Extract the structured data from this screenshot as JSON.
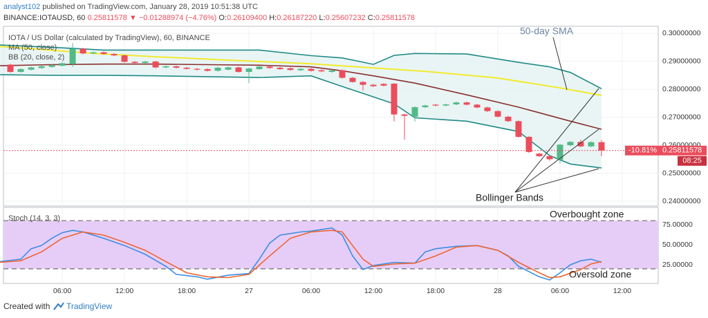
{
  "header": {
    "author": "analyst102",
    "published": "published on TradingView.com, January 28, 2019 10:51:38 UTC",
    "symbol": "BINANCE:IOTAUSD, 60",
    "price": "0.25811578",
    "change": "▼ −0.01288974 (−4.76%)",
    "ohlc": [
      {
        "label": "O:",
        "value": "0.26109400"
      },
      {
        "label": "H:",
        "value": "0.26187220"
      },
      {
        "label": "L:",
        "value": "0.25607232"
      },
      {
        "label": "C:",
        "value": "0.25811578"
      }
    ]
  },
  "footer": {
    "text": "Created with",
    "brand": "TradingView"
  },
  "chart_data": [
    {
      "type": "candlestick",
      "title": "IOTA / US Dollar (calculated by TradingView), 60, BINANCE",
      "up_color": "#53b987",
      "down_color": "#eb4d5c",
      "x": [
        1,
        2,
        3,
        4,
        5,
        6,
        7,
        8,
        9,
        10,
        11,
        12,
        13,
        14,
        15,
        16,
        17,
        18,
        19,
        20,
        21,
        22,
        23,
        24,
        25,
        26,
        27,
        28,
        29,
        30,
        31,
        32,
        33,
        34,
        35,
        36,
        37,
        38,
        39,
        40,
        41,
        42,
        43,
        44,
        45,
        46,
        47,
        48,
        49,
        50,
        51,
        52,
        53,
        54,
        55,
        56,
        57,
        58
      ],
      "open": [
        0.2888,
        0.2862,
        0.287,
        0.2876,
        0.288,
        0.2884,
        0.289,
        0.2945,
        0.2928,
        0.2932,
        0.2926,
        0.2921,
        0.2898,
        0.2894,
        0.2899,
        0.2878,
        0.2882,
        0.2877,
        0.2873,
        0.2872,
        0.2866,
        0.287,
        0.2878,
        0.2862,
        0.2872,
        0.2881,
        0.2877,
        0.2875,
        0.2868,
        0.2873,
        0.2868,
        0.2862,
        0.2868,
        0.2841,
        0.2826,
        0.2816,
        0.2819,
        0.282,
        0.271,
        0.2702,
        0.2736,
        0.2745,
        0.2742,
        0.2746,
        0.2753,
        0.2745,
        0.2735,
        0.2722,
        0.2702,
        0.2686,
        0.263,
        0.257,
        0.2561,
        0.2548,
        0.26,
        0.2612,
        0.2596,
        0.261094
      ],
      "high": [
        0.2891,
        0.2875,
        0.2881,
        0.2885,
        0.2889,
        0.2896,
        0.2965,
        0.2948,
        0.2935,
        0.2935,
        0.2929,
        0.2924,
        0.2901,
        0.2902,
        0.2902,
        0.2885,
        0.2885,
        0.288,
        0.2876,
        0.2875,
        0.288,
        0.2881,
        0.2881,
        0.2877,
        0.2884,
        0.2884,
        0.288,
        0.2878,
        0.2876,
        0.2876,
        0.2871,
        0.287,
        0.2871,
        0.2844,
        0.2829,
        0.2819,
        0.2822,
        0.2822,
        0.2713,
        0.2739,
        0.2745,
        0.2748,
        0.2749,
        0.2756,
        0.2756,
        0.2748,
        0.2738,
        0.2725,
        0.2705,
        0.2689,
        0.2633,
        0.2573,
        0.2564,
        0.2605,
        0.2615,
        0.262,
        0.2614,
        0.2618722
      ],
      "low": [
        0.2859,
        0.2859,
        0.2867,
        0.2873,
        0.2877,
        0.2881,
        0.288,
        0.2925,
        0.2925,
        0.2923,
        0.2918,
        0.2895,
        0.2891,
        0.2891,
        0.2875,
        0.2875,
        0.2874,
        0.287,
        0.2867,
        0.2863,
        0.2863,
        0.2867,
        0.2859,
        0.2822,
        0.2869,
        0.2873,
        0.2869,
        0.2866,
        0.2865,
        0.2863,
        0.2861,
        0.2859,
        0.2838,
        0.2823,
        0.2795,
        0.2808,
        0.281,
        0.2685,
        0.262,
        0.2685,
        0.2733,
        0.2739,
        0.2739,
        0.2743,
        0.2742,
        0.2732,
        0.2719,
        0.2699,
        0.2683,
        0.2627,
        0.2573,
        0.2558,
        0.2545,
        0.2535,
        0.2597,
        0.2593,
        0.2593,
        0.25607232
      ],
      "close": [
        0.2862,
        0.2872,
        0.2878,
        0.2882,
        0.2886,
        0.2893,
        0.2945,
        0.2928,
        0.2932,
        0.2926,
        0.2921,
        0.2898,
        0.2894,
        0.2899,
        0.2878,
        0.2882,
        0.2877,
        0.2873,
        0.287,
        0.2866,
        0.2877,
        0.2878,
        0.2862,
        0.2874,
        0.2881,
        0.2876,
        0.2872,
        0.2869,
        0.2873,
        0.2866,
        0.2864,
        0.2867,
        0.2841,
        0.2826,
        0.2816,
        0.2811,
        0.2813,
        0.271,
        0.2705,
        0.2736,
        0.2742,
        0.2742,
        0.2746,
        0.2753,
        0.2745,
        0.2735,
        0.2722,
        0.2702,
        0.2686,
        0.263,
        0.2576,
        0.2561,
        0.255,
        0.2602,
        0.2612,
        0.2596,
        0.2611,
        0.25811578
      ],
      "indicators": [
        {
          "name": "MA (50, close)",
          "color": "#f2ea2c",
          "x": [
            0,
            3,
            9,
            15,
            21,
            24,
            30,
            36,
            41,
            48,
            54,
            58
          ],
          "values": [
            0.2953,
            0.2945,
            0.2928,
            0.2916,
            0.2906,
            0.2901,
            0.2891,
            0.2876,
            0.2864,
            0.284,
            0.2805,
            0.2778
          ]
        },
        {
          "name": "BB (20, close, 2)",
          "band_color": "#1f8a85",
          "basis_color": "#8b2e2e",
          "fill": "#e4f3f2",
          "x": [
            0,
            5,
            10,
            15,
            20,
            25,
            30,
            33,
            36,
            38,
            40,
            45,
            50,
            53,
            55,
            58
          ],
          "upper": [
            0.2958,
            0.295,
            0.294,
            0.294,
            0.294,
            0.294,
            0.292,
            0.2912,
            0.2889,
            0.2921,
            0.2928,
            0.2926,
            0.2896,
            0.288,
            0.286,
            0.2802
          ],
          "basis": [
            0.2884,
            0.2888,
            0.289,
            0.289,
            0.2888,
            0.2886,
            0.288,
            0.2866,
            0.2848,
            0.2835,
            0.2822,
            0.278,
            0.2736,
            0.2706,
            0.2686,
            0.2657
          ],
          "lower": [
            0.2852,
            0.285,
            0.285,
            0.2848,
            0.2845,
            0.2842,
            0.2848,
            0.281,
            0.2773,
            0.2748,
            0.2698,
            0.2686,
            0.2649,
            0.2563,
            0.2533,
            0.2519
          ]
        }
      ],
      "last_price": {
        "value": 0.25811578,
        "change_label": "-10.81%",
        "countdown": "08:25",
        "color": "#eb4d5c"
      },
      "annotations": [
        "50-day SMA",
        "Bollinger Bands"
      ],
      "xlim": [
        0.33,
        63.47
      ],
      "ylim": [
        0.2383,
        0.3025
      ],
      "yticks": [
        {
          "value": 0.3,
          "label": "0.30000000"
        },
        {
          "value": 0.29,
          "label": "0.29000000"
        },
        {
          "value": 0.28,
          "label": "0.28000000"
        },
        {
          "value": 0.27,
          "label": "0.27000000"
        },
        {
          "value": 0.26,
          "label": "0.26000000"
        },
        {
          "value": 0.25,
          "label": "0.25000000"
        },
        {
          "value": 0.24,
          "label": "0.24000000"
        }
      ],
      "grid": true
    },
    {
      "type": "line",
      "title": "Stoch (14, 3, 3)",
      "series": [
        {
          "color": "#3b8de3",
          "x": [
            0,
            2,
            3,
            4,
            5,
            6,
            7,
            8,
            10,
            12,
            14,
            16,
            17,
            19,
            20,
            22,
            24,
            25,
            26,
            27,
            29,
            30,
            32,
            33,
            34,
            35,
            36,
            37,
            38,
            40,
            41,
            42,
            44,
            46,
            48,
            49,
            50,
            52,
            53,
            54,
            55,
            56,
            57,
            58
          ],
          "values": [
            29,
            32,
            45,
            49,
            58,
            65,
            68,
            66,
            58,
            49,
            38,
            23,
            13,
            10,
            7,
            12,
            14,
            32,
            52,
            62,
            66,
            67,
            71,
            62,
            36,
            19,
            24,
            26,
            28,
            27,
            41,
            45,
            48,
            49,
            43,
            36,
            23,
            10,
            6,
            15,
            25,
            30,
            32,
            28
          ]
        },
        {
          "color": "#f0642e",
          "x": [
            0,
            2,
            4,
            6,
            8,
            10,
            12,
            14,
            16,
            18,
            20,
            22,
            24,
            26,
            28,
            30,
            32,
            33,
            34,
            35,
            36,
            38,
            40,
            42,
            44,
            46,
            48,
            50,
            52,
            53,
            54,
            56,
            57,
            58
          ],
          "values": [
            28,
            30,
            41,
            58,
            66,
            62,
            53,
            43,
            29,
            15,
            10,
            9,
            13,
            36,
            58,
            66,
            68,
            66,
            49,
            32,
            23,
            26,
            27,
            36,
            47,
            49,
            43,
            28,
            15,
            9,
            10,
            19,
            26,
            29
          ]
        }
      ],
      "bands": [
        80,
        20
      ],
      "band_fill": "#e6cdf8",
      "annotations": [
        "Overbought zone",
        "Oversold zone"
      ],
      "xlim": [
        0.33,
        63.47
      ],
      "ylim": [
        1.7,
        96.6
      ],
      "yticks": [
        {
          "value": 75,
          "label": "75.00000"
        },
        {
          "value": 50,
          "label": "50.00000"
        },
        {
          "value": 25,
          "label": "25.00000"
        }
      ],
      "xticks": [
        {
          "value": 6,
          "label": "06:00"
        },
        {
          "value": 12,
          "label": "12:00"
        },
        {
          "value": 18,
          "label": "18:00"
        },
        {
          "value": 24,
          "label": "27"
        },
        {
          "value": 30,
          "label": "06:00"
        },
        {
          "value": 36,
          "label": "12:00"
        },
        {
          "value": 42,
          "label": "18:00"
        },
        {
          "value": 48,
          "label": "28"
        },
        {
          "value": 54,
          "label": "06:00"
        },
        {
          "value": 60,
          "label": "12:00"
        }
      ],
      "grid": true
    }
  ]
}
